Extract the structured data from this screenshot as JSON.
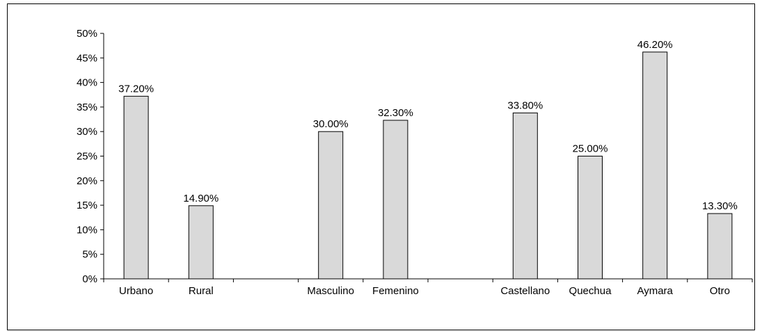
{
  "colors": {
    "bar_fill": "#d9d9d9",
    "bar_stroke": "#000000",
    "axis": "#000000",
    "background": "#ffffff"
  },
  "chart_data": {
    "type": "bar",
    "title": "",
    "xlabel": "",
    "ylabel": "",
    "ylim": [
      0,
      50
    ],
    "y_ticks": [
      0,
      5,
      10,
      15,
      20,
      25,
      30,
      35,
      40,
      45,
      50
    ],
    "y_tick_labels": [
      "0%",
      "5%",
      "10%",
      "15%",
      "20%",
      "25%",
      "30%",
      "35%",
      "40%",
      "45%",
      "50%"
    ],
    "grid": false,
    "legend": "none",
    "categories": [
      "Urbano",
      "Rural",
      "",
      "Masculino",
      "Femenino",
      "",
      "Castellano",
      "Quechua",
      "Aymara",
      "Otro"
    ],
    "values": [
      37.2,
      14.9,
      null,
      30.0,
      32.3,
      null,
      33.8,
      25.0,
      46.2,
      13.3
    ],
    "data_labels": [
      "37.20%",
      "14.90%",
      "",
      "30.00%",
      "32.30%",
      "",
      "33.80%",
      "25.00%",
      "46.20%",
      "13.30%"
    ]
  }
}
